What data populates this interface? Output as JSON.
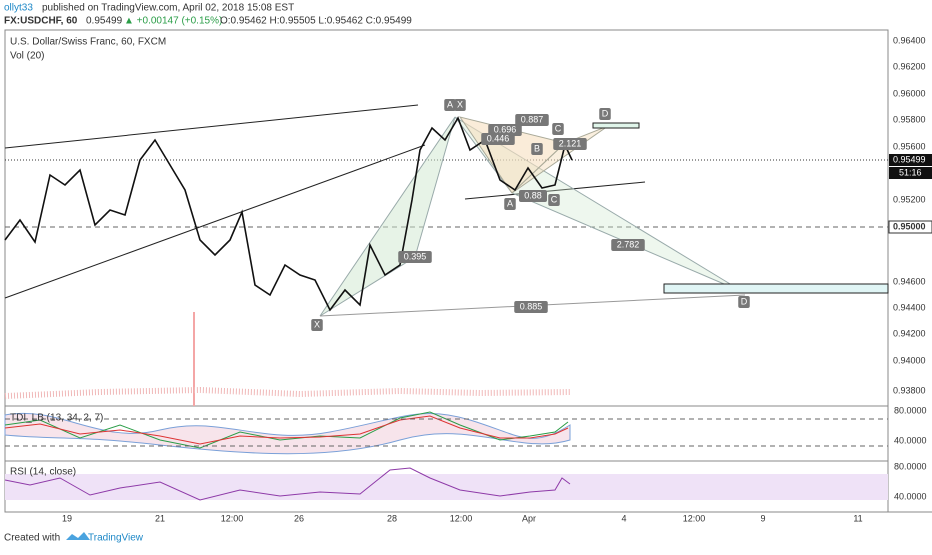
{
  "header": {
    "author": "ollyt33",
    "published": "published on TradingView.com, April 02, 2018 15:08 EST",
    "symbol": "FX:USDCHF, 60",
    "last": "0.95499",
    "change": "▲ +0.00147 (+0.15%)",
    "ohlc": "O:0.95462 H:0.95505 L:0.95462 C:0.95499"
  },
  "main_pane": {
    "title": "U.S. Dollar/Swiss Franc, 60, FXCM",
    "indicator": "Vol (20)",
    "price_labels": [
      "0.96400",
      "0.96200",
      "0.96000",
      "0.95800",
      "0.95600",
      "0.95200",
      "0.94600",
      "0.94400",
      "0.94200",
      "0.94000",
      "0.93800"
    ],
    "current_price": "0.95499",
    "countdown": "51:16",
    "level_label": "0.95000",
    "pattern_labels": [
      "X",
      "A",
      "X",
      "0.887",
      "D",
      "0.696",
      "C",
      "0.446",
      "B",
      "2.121",
      "A",
      "0.88",
      "C",
      "2.782",
      "0.395",
      "0.885",
      "D"
    ]
  },
  "tdi_pane": {
    "title": "TDI_LB (13, 34, 2, 7)",
    "labels": [
      "80.0000",
      "40.0000"
    ]
  },
  "rsi_pane": {
    "title": "RSI (14, close)",
    "labels": [
      "80.0000",
      "40.0000"
    ]
  },
  "time_axis": [
    "19",
    "21",
    "12:00",
    "26",
    "28",
    "12:00",
    "Apr",
    "4",
    "12:00",
    "9",
    "11"
  ],
  "footer": {
    "created": "Created with",
    "brand": "TradingView"
  }
}
